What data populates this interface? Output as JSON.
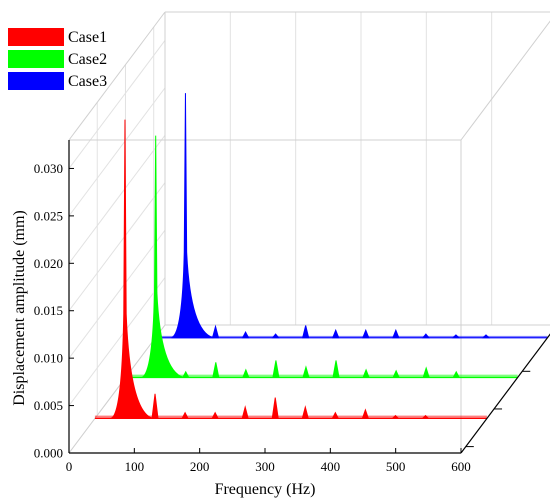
{
  "chart_data": {
    "type": "area",
    "title": "",
    "xlabel": "Frequency (Hz)",
    "ylabel": "Displacement amplitude (mm)",
    "xlim": [
      0,
      600
    ],
    "ylim": [
      0,
      0.033
    ],
    "xticks": [
      "0",
      "100",
      "200",
      "300",
      "400",
      "500",
      "600"
    ],
    "yticks": [
      "0.000",
      "0.005",
      "0.010",
      "0.015",
      "0.020",
      "0.025",
      "0.030"
    ],
    "grid": true,
    "legend_position": "top-left",
    "series": [
      {
        "name": "Case1",
        "color": "#ff0000",
        "base_amplitude": 0.0003,
        "peaks": [
          {
            "x": 46,
            "y": 0.0315
          },
          {
            "x": 92,
            "y": 0.0026
          },
          {
            "x": 138,
            "y": 0.0006
          },
          {
            "x": 184,
            "y": 0.0006
          },
          {
            "x": 230,
            "y": 0.0012
          },
          {
            "x": 276,
            "y": 0.0022
          },
          {
            "x": 322,
            "y": 0.0012
          },
          {
            "x": 368,
            "y": 0.0006
          },
          {
            "x": 414,
            "y": 0.0009
          },
          {
            "x": 460,
            "y": 0.0003
          },
          {
            "x": 506,
            "y": 0.0003
          }
        ]
      },
      {
        "name": "Case2",
        "color": "#00ff00",
        "base_amplitude": 0.0003,
        "peaks": [
          {
            "x": 46,
            "y": 0.0255
          },
          {
            "x": 92,
            "y": 0.0006
          },
          {
            "x": 138,
            "y": 0.0016
          },
          {
            "x": 184,
            "y": 0.0008
          },
          {
            "x": 230,
            "y": 0.0018
          },
          {
            "x": 276,
            "y": 0.0011
          },
          {
            "x": 322,
            "y": 0.0018
          },
          {
            "x": 368,
            "y": 0.0008
          },
          {
            "x": 414,
            "y": 0.0007
          },
          {
            "x": 460,
            "y": 0.001
          },
          {
            "x": 506,
            "y": 0.0006
          }
        ]
      },
      {
        "name": "Case3",
        "color": "#0000ff",
        "base_amplitude": 0.0002,
        "peaks": [
          {
            "x": 46,
            "y": 0.0258
          },
          {
            "x": 92,
            "y": 0.0012
          },
          {
            "x": 138,
            "y": 0.0006
          },
          {
            "x": 184,
            "y": 0.0004
          },
          {
            "x": 230,
            "y": 0.0013
          },
          {
            "x": 276,
            "y": 0.0008
          },
          {
            "x": 322,
            "y": 0.0008
          },
          {
            "x": 368,
            "y": 0.0008
          },
          {
            "x": 414,
            "y": 0.0004
          },
          {
            "x": 460,
            "y": 0.0003
          },
          {
            "x": 506,
            "y": 0.0003
          }
        ]
      }
    ]
  }
}
